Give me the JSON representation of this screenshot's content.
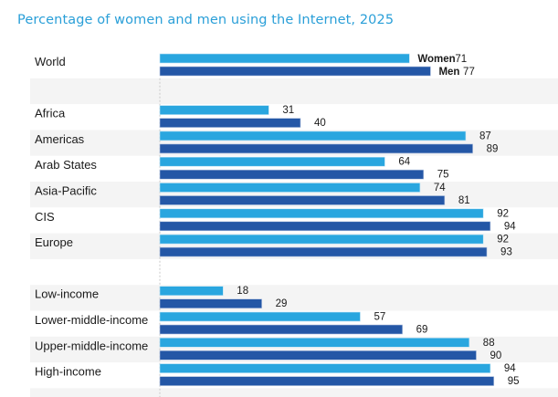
{
  "chart_data": {
    "type": "bar",
    "orientation": "horizontal",
    "title": "Percentage of women and men using the Internet, 2025",
    "xlabel": "",
    "ylabel": "",
    "xlim": [
      0,
      100
    ],
    "grid": false,
    "legend": "inline-on-first-group",
    "series": [
      {
        "name": "Women",
        "color": "#29a6df"
      },
      {
        "name": "Men",
        "color": "#2457a6"
      }
    ],
    "groups": [
      {
        "rows": [
          {
            "category": "World",
            "values": [
              71,
              77
            ]
          }
        ]
      },
      {
        "rows": [
          {
            "category": "Africa",
            "values": [
              31,
              40
            ]
          },
          {
            "category": "Americas",
            "values": [
              87,
              89
            ]
          },
          {
            "category": "Arab States",
            "values": [
              64,
              75
            ]
          },
          {
            "category": "Asia-Pacific",
            "values": [
              74,
              81
            ]
          },
          {
            "category": "CIS",
            "values": [
              92,
              94
            ]
          },
          {
            "category": "Europe",
            "values": [
              92,
              93
            ]
          }
        ]
      },
      {
        "rows": [
          {
            "category": "Low-income",
            "values": [
              18,
              29
            ]
          },
          {
            "category": "Lower-middle-income",
            "values": [
              57,
              69
            ]
          },
          {
            "category": "Upper-middle-income",
            "values": [
              88,
              90
            ]
          },
          {
            "category": "High-income",
            "values": [
              94,
              95
            ]
          }
        ]
      }
    ]
  }
}
